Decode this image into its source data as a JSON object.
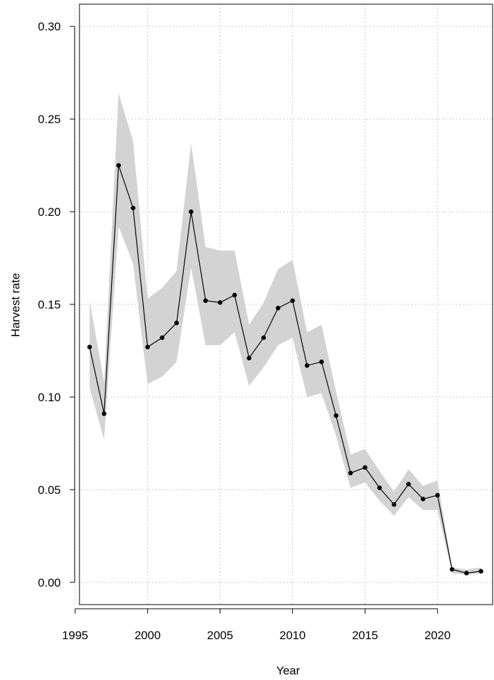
{
  "chart_data": {
    "type": "line",
    "title": "",
    "xlabel": "Year",
    "ylabel": "Harvest rate",
    "xlim": [
      1995.3,
      2023.8
    ],
    "ylim": [
      -0.012,
      0.312
    ],
    "x_ticks": [
      1995,
      2000,
      2005,
      2010,
      2015,
      2020
    ],
    "y_ticks": [
      0.0,
      0.05,
      0.1,
      0.15,
      0.2,
      0.25,
      0.3
    ],
    "x_tick_labels": [
      "1995",
      "2000",
      "2005",
      "2010",
      "2015",
      "2020"
    ],
    "y_tick_labels": [
      "0.00",
      "0.05",
      "0.10",
      "0.15",
      "0.20",
      "0.25",
      "0.30"
    ],
    "grid": true,
    "colors": {
      "line": "#000000",
      "band": "#d3d3d3",
      "grid": "#c8c8c8"
    },
    "series": [
      {
        "x": [
          1996,
          1997,
          1998,
          1999,
          2000,
          2001,
          2002,
          2003,
          2004,
          2005,
          2006,
          2007,
          2008,
          2009,
          2010,
          2011,
          2012,
          2013,
          2014,
          2015,
          2016,
          2017,
          2018,
          2019,
          2020,
          2021,
          2022,
          2023
        ],
        "values": [
          0.127,
          0.091,
          0.225,
          0.202,
          0.127,
          0.132,
          0.14,
          0.2,
          0.152,
          0.151,
          0.155,
          0.121,
          0.132,
          0.148,
          0.152,
          0.117,
          0.119,
          0.09,
          0.059,
          0.062,
          0.051,
          0.042,
          0.053,
          0.045,
          0.047,
          0.007,
          0.005,
          0.006
        ],
        "lower": [
          0.105,
          0.077,
          0.192,
          0.172,
          0.107,
          0.111,
          0.119,
          0.17,
          0.128,
          0.128,
          0.135,
          0.106,
          0.116,
          0.128,
          0.132,
          0.1,
          0.102,
          0.079,
          0.051,
          0.054,
          0.044,
          0.036,
          0.046,
          0.039,
          0.039,
          0.005,
          0.004,
          0.005
        ],
        "upper": [
          0.152,
          0.108,
          0.264,
          0.238,
          0.153,
          0.159,
          0.168,
          0.237,
          0.181,
          0.179,
          0.179,
          0.139,
          0.151,
          0.169,
          0.174,
          0.135,
          0.139,
          0.103,
          0.069,
          0.072,
          0.06,
          0.049,
          0.061,
          0.052,
          0.055,
          0.008,
          0.007,
          0.008
        ]
      }
    ]
  }
}
